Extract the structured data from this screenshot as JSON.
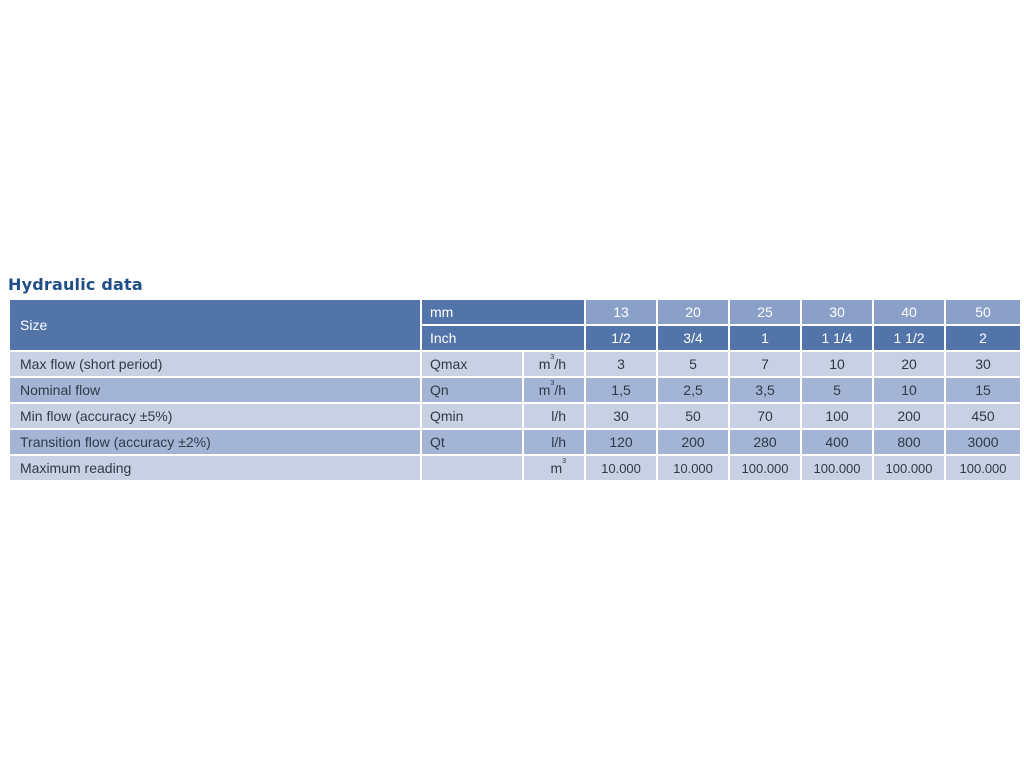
{
  "title": "Hydraulic data",
  "header": {
    "size_label": "Size",
    "mm_label": "mm",
    "inch_label": "Inch",
    "mm_values": [
      "13",
      "20",
      "25",
      "30",
      "40",
      "50"
    ],
    "inch_values": [
      "1/2",
      "3/4",
      "1",
      "1 1/4",
      "1 1/2",
      "2"
    ]
  },
  "rows": [
    {
      "label": "Max flow (short period)",
      "code": "Qmax",
      "unit_base": "m",
      "unit_sup": "3",
      "unit_tail": "/h",
      "values": [
        "3",
        "5",
        "7",
        "10",
        "20",
        "30"
      ]
    },
    {
      "label": "Nominal flow",
      "code": "Qn",
      "unit_base": "m",
      "unit_sup": "3",
      "unit_tail": "/h",
      "values": [
        "1,5",
        "2,5",
        "3,5",
        "5",
        "10",
        "15"
      ]
    },
    {
      "label": "Min flow (accuracy ±5%)",
      "code": "Qmin",
      "unit_base": "l/h",
      "unit_sup": "",
      "unit_tail": "",
      "values": [
        "30",
        "50",
        "70",
        "100",
        "200",
        "450"
      ]
    },
    {
      "label": "Transition flow (accuracy ±2%)",
      "code": "Qt",
      "unit_base": "l/h",
      "unit_sup": "",
      "unit_tail": "",
      "values": [
        "120",
        "200",
        "280",
        "400",
        "800",
        "3000"
      ]
    },
    {
      "label": "Maximum reading",
      "code": "",
      "unit_base": "m",
      "unit_sup": "3",
      "unit_tail": "",
      "values": [
        "10.000",
        "10.000",
        "100.000",
        "100.000",
        "100.000",
        "100.000"
      ]
    }
  ],
  "colors": {
    "title": "#1f4d85",
    "header_dark": "#5274a8",
    "header_light": "#8aa0c8",
    "row_light": "#c8d0e4",
    "row_dark": "#a4b4d4"
  }
}
